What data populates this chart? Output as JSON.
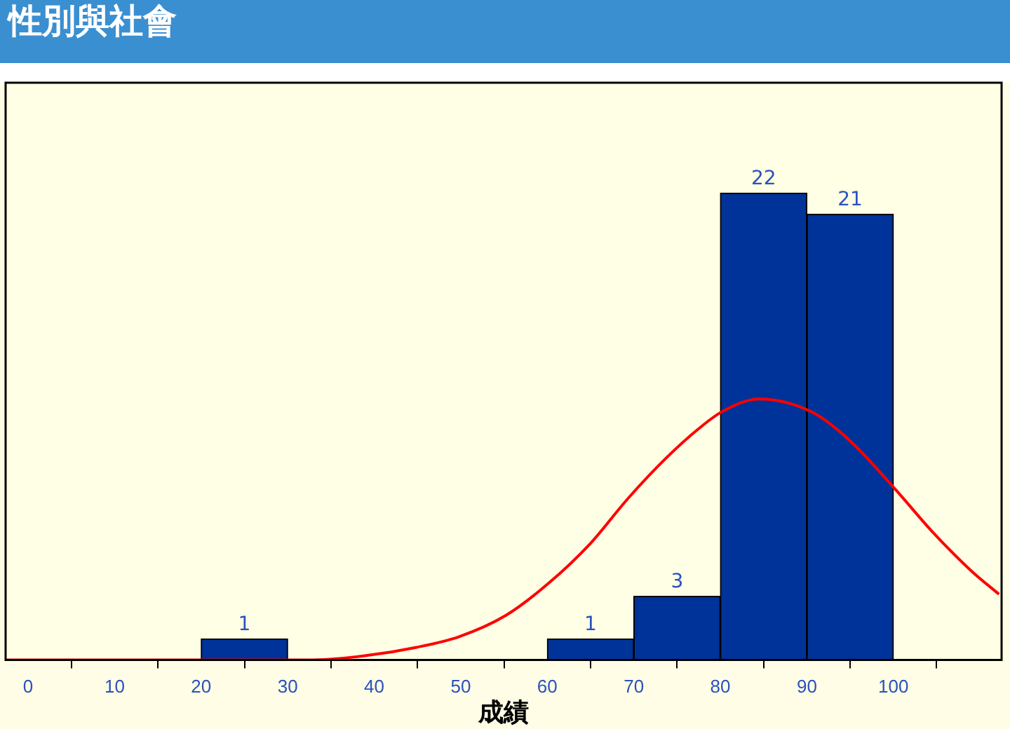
{
  "chart_data": {
    "type": "histogram",
    "title": "性別與社會",
    "xlabel": "成績",
    "xlim": [
      -2.6,
      112.5
    ],
    "xticks": [
      0,
      10,
      20,
      30,
      40,
      50,
      60,
      70,
      80,
      90,
      100
    ],
    "ylim": [
      0,
      27.2
    ],
    "tick_labels": "x",
    "grid": false,
    "legend": false,
    "series": [
      {
        "color": "#003399",
        "bins": [
          0,
          10,
          20,
          30,
          40,
          50,
          60,
          70,
          80,
          90,
          100
        ],
        "values": [
          0,
          0,
          1,
          0,
          0,
          0,
          1,
          3,
          22,
          21
        ],
        "value_labels": [
          null,
          null,
          "1",
          null,
          null,
          null,
          "1",
          "3",
          "22",
          "21"
        ]
      },
      {
        "type": "line",
        "color": "#ff0000",
        "x": [
          -2.6,
          32.4,
          38.9,
          44.9,
          49.8,
          55.2,
          60.1,
          65.0,
          69.3,
          73.7,
          77.5,
          80.2,
          84.5,
          90.5,
          94.8,
          100.1,
          104.6,
          109.0,
          112.2
        ],
        "values": [
          0,
          0,
          0.2,
          0.6,
          1.1,
          2.1,
          3.6,
          5.5,
          7.6,
          9.5,
          10.9,
          11.7,
          12.3,
          11.7,
          10.4,
          8.1,
          6.0,
          4.2,
          3.1
        ]
      }
    ]
  }
}
